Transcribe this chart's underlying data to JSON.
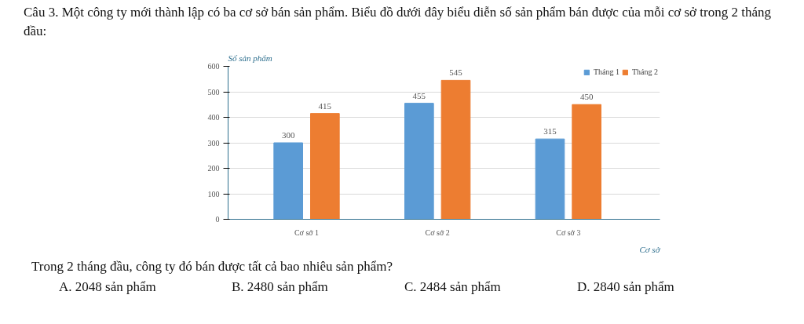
{
  "chart_data": {
    "type": "bar",
    "title": "Câu 3. Một công ty mới thành lập có ba cơ sở bán sản phẩm. Biểu đồ dưới đây biểu diễn số sản phẩm bán được của mỗi cơ sở trong 2 tháng đầu:",
    "xlabel": "Cơ sở",
    "ylabel": "Số sản phẩm",
    "categories": [
      "Cơ sở 1",
      "Cơ sở 2",
      "Cơ sở 3"
    ],
    "series": [
      {
        "name": "Tháng 1",
        "color": "#5b9bd5",
        "values": [
          300,
          455,
          315
        ]
      },
      {
        "name": "Tháng 2",
        "color": "#ed7d31",
        "values": [
          415,
          545,
          450
        ]
      }
    ],
    "ylim": [
      0,
      600
    ],
    "yticks": [
      0,
      100,
      200,
      300,
      400,
      500,
      600
    ],
    "grid": "y",
    "legend": "top",
    "data_labels": true,
    "annotations": [
      "Trong 2 tháng đầu, công ty đó bán được tất cả bao nhiêu sản phẩm?",
      "A. 2048 sản phẩm",
      "B. 2480 sản phẩm",
      "C. 2484 sản phẩm",
      "D. 2840 sản phẩm"
    ]
  }
}
